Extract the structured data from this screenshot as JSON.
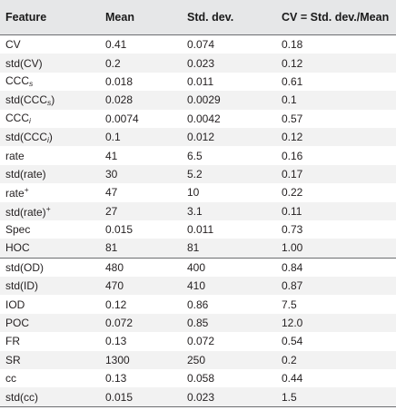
{
  "table": {
    "headers": [
      "Feature",
      "Mean",
      "Std. dev.",
      "CV = Std. dev./Mean"
    ],
    "rows": [
      {
        "feature": {
          "base": "CV"
        },
        "mean": "0.41",
        "std": "0.074",
        "cv": "0.18"
      },
      {
        "feature": {
          "base": "std(CV)"
        },
        "mean": "0.2",
        "std": "0.023",
        "cv": "0.12"
      },
      {
        "feature": {
          "base": "CCC",
          "sub": "s"
        },
        "mean": "0.018",
        "std": "0.011",
        "cv": "0.61"
      },
      {
        "feature": {
          "base": "std(CCC",
          "sub": "s",
          "tail": ")"
        },
        "mean": "0.028",
        "std": "0.0029",
        "cv": "0.1"
      },
      {
        "feature": {
          "base": "CCC",
          "sub": "i"
        },
        "mean": "0.0074",
        "std": "0.0042",
        "cv": "0.57"
      },
      {
        "feature": {
          "base": "std(CCC",
          "sub": "i",
          "tail": ")"
        },
        "mean": "0.1",
        "std": "0.012",
        "cv": "0.12"
      },
      {
        "feature": {
          "base": "rate"
        },
        "mean": "41",
        "std": "6.5",
        "cv": "0.16"
      },
      {
        "feature": {
          "base": "std(rate)"
        },
        "mean": "30",
        "std": "5.2",
        "cv": "0.17"
      },
      {
        "feature": {
          "base": "rate",
          "sup": "+"
        },
        "mean": "47",
        "std": "10",
        "cv": "0.22"
      },
      {
        "feature": {
          "base": "std(rate)",
          "sup": "+"
        },
        "mean": "27",
        "std": "3.1",
        "cv": "0.11"
      },
      {
        "feature": {
          "base": "Spec"
        },
        "mean": "0.015",
        "std": "0.011",
        "cv": "0.73"
      },
      {
        "feature": {
          "base": "HOC"
        },
        "mean": "81",
        "std": "81",
        "cv": "1.00"
      },
      {
        "feature": {
          "base": "std(OD)"
        },
        "mean": "480",
        "std": "400",
        "cv": "0.84",
        "group_start": true
      },
      {
        "feature": {
          "base": "std(ID)"
        },
        "mean": "470",
        "std": "410",
        "cv": "0.87"
      },
      {
        "feature": {
          "base": "IOD"
        },
        "mean": "0.12",
        "std": "0.86",
        "cv": "7.5"
      },
      {
        "feature": {
          "base": "POC"
        },
        "mean": "0.072",
        "std": "0.85",
        "cv": "12.0"
      },
      {
        "feature": {
          "base": "FR"
        },
        "mean": "0.13",
        "std": "0.072",
        "cv": "0.54"
      },
      {
        "feature": {
          "base": "SR"
        },
        "mean": "1300",
        "std": "250",
        "cv": "0.2"
      },
      {
        "feature": {
          "base": "cc"
        },
        "mean": "0.13",
        "std": "0.058",
        "cv": "0.44"
      },
      {
        "feature": {
          "base": "std(cc)"
        },
        "mean": "0.015",
        "std": "0.023",
        "cv": "1.5"
      }
    ]
  }
}
